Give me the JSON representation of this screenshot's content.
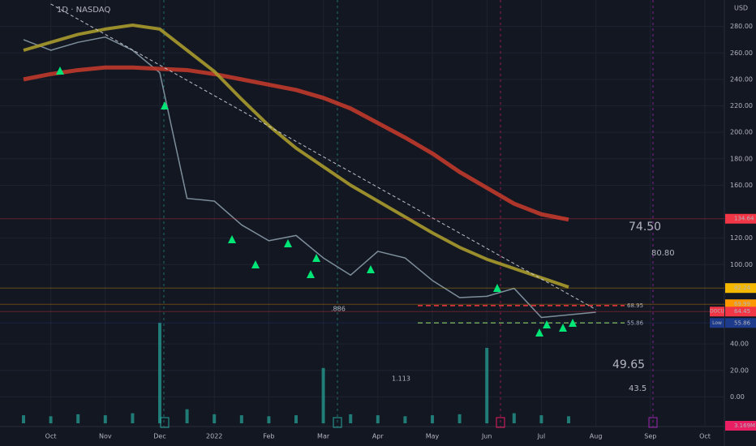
{
  "chart_data": {
    "type": "line",
    "title": "1D · NASDAQ",
    "currency": "USD",
    "categories": [
      null,
      "Oct",
      null,
      "Nov",
      null,
      "Dec",
      null,
      "2022",
      null,
      "Feb",
      null,
      "Mar",
      null,
      "Apr",
      null,
      "May",
      null,
      "Jun",
      null,
      "Jul",
      null,
      "Aug",
      null,
      "Sep",
      null,
      "Oct"
    ],
    "series": [
      {
        "color": "#8a9ba8",
        "values": [
          270,
          262,
          268,
          272,
          262,
          245,
          150,
          148,
          130,
          118,
          122,
          105,
          92,
          110,
          105,
          88,
          75,
          76,
          82,
          60,
          62,
          64,
          null,
          null,
          null,
          null
        ]
      },
      {
        "color": "#c0392b",
        "width": 5,
        "values": [
          240,
          244,
          247,
          249,
          249,
          248,
          247,
          244,
          240,
          236,
          232,
          226,
          218,
          207,
          196,
          184,
          170,
          158,
          146,
          138,
          134,
          null,
          null,
          null,
          null,
          null
        ]
      },
      {
        "color": "#a89a2e",
        "width": 4,
        "values": [
          262,
          268,
          274,
          278,
          281,
          278,
          262,
          246,
          225,
          205,
          188,
          174,
          160,
          148,
          136,
          124,
          113,
          104,
          97,
          90,
          83,
          null,
          null,
          null,
          null,
          null
        ]
      },
      {
        "color": "#d0d3db",
        "width": 1,
        "dash": "4 3",
        "values": [
          null,
          297,
          285.5,
          274,
          262.3,
          250.8,
          239.3,
          227.7,
          216.2,
          204.6,
          193.1,
          181.5,
          170,
          158.4,
          146.9,
          135.3,
          123.8,
          112.2,
          100.7,
          89.1,
          77.6,
          66,
          null,
          null,
          null,
          null
        ]
      }
    ],
    "volume": {
      "color": "#26a69a",
      "vlim": [
        0,
        100
      ],
      "values": [
        8,
        7,
        9,
        8,
        10,
        100,
        14,
        9,
        8,
        7,
        8,
        55,
        9,
        8,
        7,
        8,
        9,
        75,
        10,
        8,
        7,
        null,
        null,
        null,
        null,
        null
      ]
    },
    "volume_tag": "3.169M",
    "ylim": [
      -20,
      300
    ],
    "yticks": [
      {
        "value": 280,
        "label": "280.00"
      },
      {
        "value": 260,
        "label": "260.00"
      },
      {
        "value": 240,
        "label": "240.00"
      },
      {
        "value": 220,
        "label": "220.00"
      },
      {
        "value": 200,
        "label": "200.00"
      },
      {
        "value": 180,
        "label": "180.00"
      },
      {
        "value": 160,
        "label": "160.00"
      },
      {
        "value": 120,
        "label": "120.00"
      },
      {
        "value": 100,
        "label": "100.00"
      },
      {
        "value": 40,
        "label": "40.00"
      },
      {
        "value": 20,
        "label": "20.00"
      },
      {
        "value": 0,
        "label": "0.00"
      }
    ],
    "grid": true,
    "levels": [
      {
        "value": 68.95,
        "color": "#f23645"
      },
      {
        "value": 55.86,
        "color": "#8bc34a"
      }
    ],
    "price_tags": [
      {
        "value": 134.64,
        "color": "#f23645"
      },
      {
        "value": 82.24,
        "color": "#f5b800"
      },
      {
        "value": 69.99,
        "color": "#ff9800"
      },
      {
        "value": 64.45,
        "color": "#f23645",
        "label": "DOCU"
      },
      {
        "value": 55.86,
        "color": "#1e3a8a",
        "label": "Low"
      }
    ],
    "annotations": [
      {
        "text": "74.50",
        "color": "#a5e33a",
        "size": 14
      },
      {
        "text": "80.80",
        "color": "#a5e33a",
        "size": 10
      },
      {
        "text": "49.65",
        "color": "#f5a623",
        "size": 14
      },
      {
        "text": "43.5",
        "color": "#f5a623",
        "size": 10
      },
      {
        "text": ".886",
        "color": "#ffffff",
        "size": 8
      },
      {
        "text": "1.113",
        "color": "#ffffff",
        "size": 8
      }
    ]
  }
}
